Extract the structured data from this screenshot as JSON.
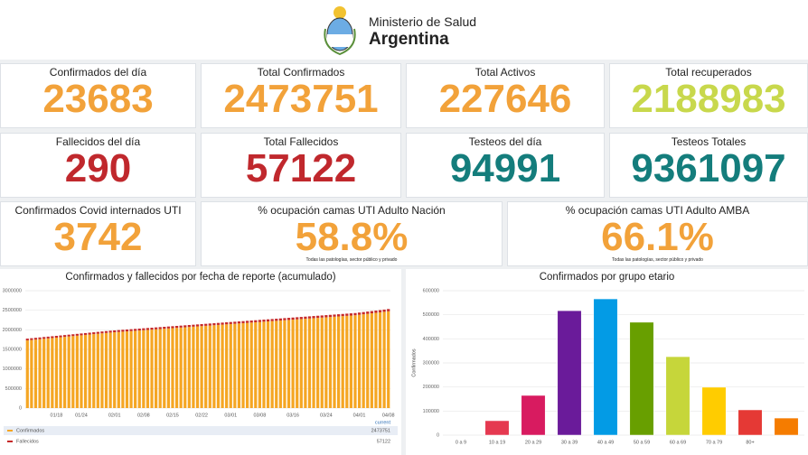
{
  "header": {
    "title": "Ministerio de Salud",
    "subtitle": "Argentina"
  },
  "cards": [
    {
      "title": "Confirmados del día",
      "value": "23683",
      "color": "#f2a23a"
    },
    {
      "title": "Total Confirmados",
      "value": "2473751",
      "color": "#f2a23a"
    },
    {
      "title": "Total Activos",
      "value": "227646",
      "color": "#f2a23a"
    },
    {
      "title": "Total recuperados",
      "value": "2188983",
      "color": "#c8d84c"
    },
    {
      "title": "Fallecidos del día",
      "value": "290",
      "color": "#c0282d"
    },
    {
      "title": "Total Fallecidos",
      "value": "57122",
      "color": "#c0282d"
    },
    {
      "title": "Testeos del día",
      "value": "94991",
      "color": "#147d7c"
    },
    {
      "title": "Testeos Totales",
      "value": "9361097",
      "color": "#147d7c"
    },
    {
      "title": "Confirmados Covid internados UTI",
      "value": "3742",
      "color": "#f2a23a"
    },
    {
      "title": "% ocupación camas UTI Adulto Nación",
      "value": "58.8%",
      "color": "#f2a23a",
      "note": "Todas las patologías, sector público y privado"
    },
    {
      "title": "% ocupación camas UTI Adulto AMBA",
      "value": "66.1%",
      "color": "#f2a23a",
      "note": "Todas las patologías, sector público y privado"
    }
  ],
  "chart_data": [
    {
      "type": "stacked_bar",
      "title": "Confirmados y fallecidos por fecha de reporte (acumulado)",
      "categories": [
        null,
        null,
        null,
        null,
        null,
        null,
        null,
        "01/18",
        null,
        null,
        null,
        null,
        null,
        "01/24",
        null,
        null,
        null,
        null,
        null,
        null,
        null,
        "02/01",
        null,
        null,
        null,
        null,
        null,
        null,
        "02/08",
        null,
        null,
        null,
        null,
        null,
        null,
        "02/15",
        null,
        null,
        null,
        null,
        null,
        null,
        "02/22",
        null,
        null,
        null,
        null,
        null,
        null,
        "03/01",
        null,
        null,
        null,
        null,
        null,
        null,
        "03/08",
        null,
        null,
        null,
        null,
        null,
        null,
        null,
        "03/16",
        null,
        null,
        null,
        null,
        null,
        null,
        null,
        "03/24",
        null,
        null,
        null,
        null,
        null,
        null,
        null,
        "04/01",
        null,
        null,
        null,
        null,
        null,
        null,
        "04/08"
      ],
      "series": [
        {
          "name": "Confirmados",
          "color": "#f5a623",
          "values": [
            1730000,
            1740000,
            1750000,
            1760000,
            1770000,
            1780000,
            1790000,
            1800000,
            1810000,
            1820000,
            1830000,
            1840000,
            1850000,
            1860000,
            1870000,
            1880000,
            1890000,
            1900000,
            1910000,
            1920000,
            1930000,
            1937500,
            1945000,
            1952500,
            1960000,
            1967500,
            1975000,
            1982500,
            1990000,
            1997500,
            2005000,
            2012500,
            2020000,
            2027500,
            2035000,
            2042500,
            2050000,
            2057500,
            2065000,
            2072500,
            2080000,
            2087500,
            2095000,
            2102500,
            2110000,
            2117500,
            2125000,
            2132500,
            2140000,
            2147500,
            2155000,
            2162500,
            2170000,
            2177500,
            2185000,
            2192500,
            2200000,
            2207500,
            2215000,
            2222500,
            2230000,
            2237500,
            2245000,
            2252500,
            2260000,
            2267500,
            2275000,
            2282500,
            2290000,
            2297500,
            2305000,
            2312500,
            2320000,
            2327500,
            2335000,
            2342500,
            2350000,
            2357500,
            2365000,
            2372500,
            2385000,
            2397500,
            2410000,
            2422500,
            2435000,
            2447500,
            2460000,
            2473751
          ]
        },
        {
          "name": "Fallecidos",
          "color": "#c62828",
          "values": [
            44800,
            44940,
            45080,
            45220,
            45360,
            45500,
            45640,
            45780,
            45920,
            46060,
            46200,
            46340,
            46480,
            46620,
            46760,
            46900,
            47040,
            47180,
            47320,
            47460,
            47600,
            47740,
            47880,
            48020,
            48160,
            48300,
            48440,
            48580,
            48720,
            48860,
            49000,
            49140,
            49280,
            49420,
            49560,
            49700,
            49840,
            49980,
            50120,
            50260,
            50400,
            50540,
            50680,
            50820,
            50960,
            51100,
            51240,
            51380,
            51520,
            51660,
            51800,
            51940,
            52080,
            52220,
            52360,
            52500,
            52640,
            52780,
            52920,
            53060,
            53200,
            53340,
            53480,
            53620,
            53760,
            53900,
            54040,
            54180,
            54320,
            54460,
            54600,
            54740,
            54880,
            55020,
            55160,
            55300,
            55440,
            55580,
            55720,
            55860,
            56000,
            56140,
            56280,
            56420,
            56560,
            56700,
            56840,
            57122
          ]
        }
      ],
      "ylim": [
        0,
        3000000
      ],
      "yticks": [
        0,
        500000,
        1000000,
        1500000,
        2000000,
        2500000,
        3000000
      ],
      "grid": true,
      "legend_header": "current"
    },
    {
      "type": "bar",
      "title": "Confirmados por grupo etario",
      "ylabel": "Confirmados",
      "categories": [
        "0 a 9",
        "10 a 19",
        "20 a 29",
        "30 a 39",
        "40 a 49",
        "50 a 59",
        "60 a 69",
        "70 a 79",
        "80+",
        null
      ],
      "values": [
        0,
        60000,
        165000,
        517000,
        566000,
        469000,
        326000,
        199000,
        105000,
        71000
      ],
      "colors": [
        "#e53950",
        "#e53950",
        "#d81b60",
        "#6a1b9a",
        "#039be5",
        "#689f00",
        "#c6d63a",
        "#ffcc00",
        "#e53935",
        "#f57c00"
      ],
      "ylim": [
        0,
        600000
      ],
      "yticks": [
        0,
        100000,
        200000,
        300000,
        400000,
        500000,
        600000
      ],
      "grid": true
    }
  ]
}
